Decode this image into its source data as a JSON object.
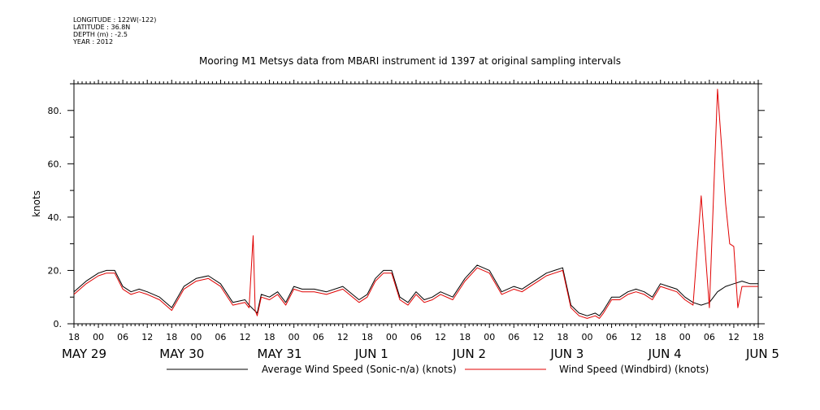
{
  "header": {
    "meta_lines": [
      "LONGITUDE : 122W(-122)",
      "LATITUDE : 36.8N",
      "DEPTH (m) : -2.5",
      "YEAR : 2012"
    ]
  },
  "chart_data": {
    "type": "line",
    "title": "Mooring M1 Metsys data from MBARI instrument id 1397 at original sampling intervals",
    "xlabel": "",
    "ylabel": "knots",
    "ylim": [
      0,
      90
    ],
    "y_ticks": [
      0,
      20,
      40,
      60,
      80
    ],
    "y_tick_labels": [
      "0.",
      "20.",
      "40.",
      "60.",
      "80."
    ],
    "x_range_hours": [
      -6,
      162
    ],
    "x_ticks_hours": [
      -6,
      0,
      6,
      12,
      18,
      24,
      30,
      36,
      42,
      48,
      54,
      60,
      66,
      72,
      78,
      84,
      90,
      96,
      102,
      108,
      114,
      120,
      126,
      132,
      138,
      144,
      150,
      156,
      162
    ],
    "x_tick_labels": [
      "18",
      "00",
      "06",
      "12",
      "18",
      "00",
      "06",
      "12",
      "18",
      "00",
      "06",
      "12",
      "18",
      "00",
      "06",
      "12",
      "18",
      "00",
      "06",
      "12",
      "18",
      "00",
      "06",
      "12",
      "18",
      "00",
      "06",
      "12",
      "18"
    ],
    "date_labels": [
      {
        "hour": -9,
        "label": "MAY 29"
      },
      {
        "hour": 15,
        "label": "MAY 30"
      },
      {
        "hour": 39,
        "label": "MAY 31"
      },
      {
        "hour": 63,
        "label": "JUN  1"
      },
      {
        "hour": 87,
        "label": "JUN  2"
      },
      {
        "hour": 111,
        "label": "JUN  3"
      },
      {
        "hour": 135,
        "label": "JUN  4"
      },
      {
        "hour": 159,
        "label": "JUN  5"
      }
    ],
    "grid": false,
    "legend_position": "bottom",
    "series": [
      {
        "name": "Average Wind Speed (Sonic-n/a) (knots)",
        "color": "#000000",
        "x": [
          -6,
          -3,
          0,
          2,
          4,
          6,
          8,
          10,
          12,
          15,
          18,
          21,
          24,
          27,
          30,
          33,
          36,
          37,
          39,
          40,
          42,
          44,
          46,
          48,
          50,
          53,
          56,
          60,
          64,
          66,
          68,
          70,
          72,
          74,
          76,
          78,
          80,
          82,
          84,
          87,
          90,
          93,
          96,
          99,
          102,
          104,
          106,
          108,
          110,
          112,
          114,
          116,
          118,
          120,
          122,
          123,
          124,
          126,
          128,
          130,
          132,
          134,
          136,
          138,
          140,
          142,
          144,
          146,
          148,
          150,
          152,
          154,
          156,
          158,
          160,
          162
        ],
        "values": [
          12,
          16,
          19,
          20,
          20,
          14,
          12,
          13,
          12,
          10,
          6,
          14,
          17,
          18,
          15,
          8,
          9,
          7,
          4,
          11,
          10,
          12,
          8,
          14,
          13,
          13,
          12,
          14,
          9,
          11,
          17,
          20,
          20,
          10,
          8,
          12,
          9,
          10,
          12,
          10,
          17,
          22,
          20,
          12,
          14,
          13,
          15,
          17,
          19,
          20,
          21,
          7,
          4,
          3,
          4,
          3,
          5,
          10,
          10,
          12,
          13,
          12,
          10,
          15,
          14,
          13,
          10,
          8,
          7,
          8,
          12,
          14,
          15,
          16,
          15,
          15
        ]
      },
      {
        "name": "Wind Speed (Windbird) (knots)",
        "color": "#e00000",
        "x": [
          -6,
          -3,
          0,
          2,
          4,
          6,
          8,
          10,
          12,
          15,
          18,
          21,
          24,
          27,
          30,
          33,
          36,
          37,
          38,
          38.5,
          39,
          40,
          42,
          44,
          46,
          48,
          50,
          53,
          56,
          60,
          64,
          66,
          68,
          70,
          72,
          74,
          76,
          78,
          80,
          82,
          84,
          87,
          90,
          93,
          96,
          99,
          102,
          104,
          106,
          108,
          110,
          112,
          114,
          116,
          118,
          120,
          122,
          123,
          124,
          126,
          128,
          130,
          132,
          134,
          136,
          138,
          140,
          142,
          144,
          146,
          148,
          150,
          152,
          154,
          155,
          156,
          157,
          158,
          160,
          162
        ],
        "values": [
          11,
          15,
          18,
          19,
          19,
          13,
          11,
          12,
          11,
          9,
          5,
          13,
          16,
          17,
          14,
          7,
          8,
          6,
          33,
          5,
          3,
          10,
          9,
          11,
          7,
          13,
          12,
          12,
          11,
          13,
          8,
          10,
          16,
          19,
          19,
          9,
          7,
          11,
          8,
          9,
          11,
          9,
          16,
          21,
          19,
          11,
          13,
          12,
          14,
          16,
          18,
          19,
          20,
          6,
          3,
          2,
          3,
          2,
          4,
          9,
          9,
          11,
          12,
          11,
          9,
          14,
          13,
          12,
          9,
          7,
          48,
          6,
          88,
          45,
          30,
          29,
          6,
          14,
          14,
          14
        ]
      }
    ]
  }
}
